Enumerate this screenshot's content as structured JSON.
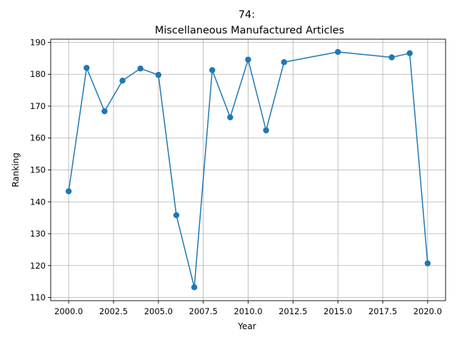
{
  "chart_data": {
    "type": "line",
    "title_line1": "74:",
    "title_line2": "Miscellaneous Manufactured Articles",
    "xlabel": "Year",
    "ylabel": "Ranking",
    "xlim": [
      1999.0,
      2021.0
    ],
    "ylim": [
      109.0,
      191.0
    ],
    "xticks": [
      2000.0,
      2002.5,
      2005.0,
      2007.5,
      2010.0,
      2012.5,
      2015.0,
      2017.5,
      2020.0
    ],
    "xtick_labels": [
      "2000.0",
      "2002.5",
      "2005.0",
      "2007.5",
      "2010.0",
      "2012.5",
      "2015.0",
      "2017.5",
      "2020.0"
    ],
    "yticks": [
      110,
      120,
      130,
      140,
      150,
      160,
      170,
      180,
      190
    ],
    "ytick_labels": [
      "110",
      "120",
      "130",
      "140",
      "150",
      "160",
      "170",
      "180",
      "190"
    ],
    "grid": true,
    "color": "#1f77b4",
    "x": [
      2000,
      2001,
      2002,
      2003,
      2004,
      2005,
      2006,
      2007,
      2008,
      2009,
      2010,
      2011,
      2012,
      2015,
      2018,
      2019,
      2020
    ],
    "y": [
      143.3,
      182.0,
      168.4,
      178.0,
      181.8,
      179.8,
      135.8,
      113.2,
      181.3,
      166.5,
      184.6,
      162.4,
      183.8,
      187.0,
      185.3,
      186.6,
      120.7
    ]
  }
}
